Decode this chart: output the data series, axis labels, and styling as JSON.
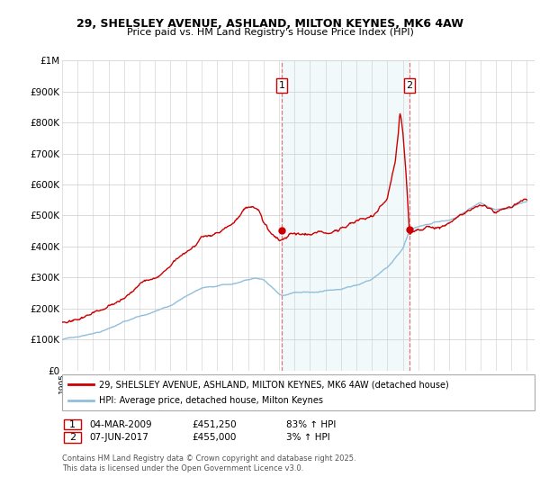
{
  "title1": "29, SHELSLEY AVENUE, ASHLAND, MILTON KEYNES, MK6 4AW",
  "title2": "Price paid vs. HM Land Registry's House Price Index (HPI)",
  "y_ticks": [
    0,
    100000,
    200000,
    300000,
    400000,
    500000,
    600000,
    700000,
    800000,
    900000,
    1000000
  ],
  "y_tick_labels": [
    "£0",
    "£100K",
    "£200K",
    "£300K",
    "£400K",
    "£500K",
    "£600K",
    "£700K",
    "£800K",
    "£900K",
    "£1M"
  ],
  "x_min": 1995,
  "x_max": 2025.5,
  "ylim_min": 0,
  "ylim_max": 1000000,
  "sale1_date": 2009.17,
  "sale1_price": 451250,
  "sale2_date": 2017.43,
  "sale2_price": 455000,
  "legend_line1": "29, SHELSLEY AVENUE, ASHLAND, MILTON KEYNES, MK6 4AW (detached house)",
  "legend_line2": "HPI: Average price, detached house, Milton Keynes",
  "annotation1_date": "04-MAR-2009",
  "annotation1_price": "£451,250",
  "annotation1_hpi": "83% ↑ HPI",
  "annotation2_date": "07-JUN-2017",
  "annotation2_price": "£455,000",
  "annotation2_hpi": "3% ↑ HPI",
  "footer": "Contains HM Land Registry data © Crown copyright and database right 2025.\nThis data is licensed under the Open Government Licence v3.0.",
  "line_color_property": "#cc0000",
  "line_color_hpi": "#90bfdd"
}
